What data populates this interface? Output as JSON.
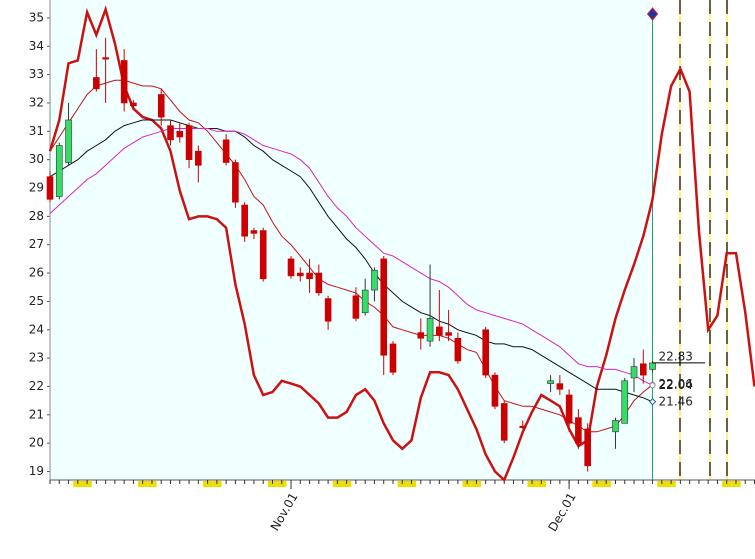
{
  "chart_data": {
    "type": "candlestick",
    "categories": [
      null,
      null,
      null,
      null,
      null,
      null,
      null,
      null,
      null,
      null,
      null,
      null,
      null,
      null,
      null,
      null,
      null,
      null,
      null,
      null,
      null,
      null,
      null,
      null,
      null,
      null,
      "Nov.01",
      null,
      null,
      null,
      null,
      null,
      null,
      null,
      null,
      null,
      null,
      null,
      null,
      null,
      null,
      null,
      null,
      null,
      null,
      null,
      null,
      null,
      null,
      null,
      null,
      null,
      null,
      null,
      null,
      null,
      "Dec.01",
      null,
      null,
      null,
      null,
      null,
      null,
      null,
      null,
      null,
      null,
      null,
      null,
      null,
      null,
      null,
      null,
      null,
      null,
      null,
      null
    ],
    "ohlc": {
      "up_color": "#33dd66",
      "down_color": "#cc0000",
      "open": [
        29.4,
        28.7,
        29.9,
        null,
        null,
        32.9,
        33.6,
        null,
        33.5,
        32.0,
        null,
        null,
        32.3,
        31.2,
        31.0,
        31.2,
        30.3,
        null,
        null,
        30.7,
        29.9,
        28.4,
        27.5,
        27.5,
        null,
        null,
        26.5,
        26.0,
        26.0,
        26.0,
        25.1,
        null,
        null,
        25.2,
        24.6,
        25.4,
        26.5,
        23.5,
        null,
        null,
        23.9,
        23.6,
        24.1,
        23.9,
        23.7,
        null,
        null,
        24.0,
        22.4,
        21.4,
        null,
        20.6,
        null,
        null,
        22.1,
        22.1,
        21.7,
        20.9,
        20.5,
        null,
        null,
        20.4,
        20.7,
        22.3,
        22.8,
        22.6,
        null,
        null,
        null,
        null,
        null,
        null,
        null,
        null,
        null,
        null,
        null
      ],
      "high": [
        29.6,
        30.6,
        32.0,
        null,
        null,
        33.9,
        34.3,
        null,
        33.9,
        32.1,
        null,
        null,
        32.5,
        31.4,
        31.3,
        31.3,
        30.5,
        null,
        null,
        30.9,
        30.0,
        28.5,
        27.6,
        27.6,
        null,
        null,
        26.6,
        26.2,
        26.5,
        26.3,
        25.2,
        null,
        null,
        25.5,
        25.8,
        26.2,
        26.6,
        23.6,
        null,
        null,
        24.4,
        26.3,
        25.4,
        24.7,
        23.9,
        null,
        null,
        24.1,
        22.5,
        21.5,
        null,
        20.8,
        null,
        null,
        22.4,
        22.4,
        21.9,
        21.2,
        20.7,
        null,
        null,
        20.9,
        22.3,
        23.0,
        23.3,
        22.9,
        null,
        null,
        null,
        null,
        null,
        null,
        null,
        null,
        null,
        null,
        null
      ],
      "low": [
        28.5,
        28.6,
        29.8,
        null,
        null,
        32.4,
        32.0,
        null,
        31.7,
        31.8,
        null,
        null,
        31.2,
        30.5,
        30.6,
        29.7,
        29.2,
        null,
        null,
        29.8,
        28.3,
        27.1,
        27.2,
        25.7,
        null,
        null,
        25.8,
        25.7,
        25.3,
        25.2,
        24.0,
        null,
        null,
        24.3,
        24.5,
        25.0,
        22.4,
        22.4,
        null,
        null,
        23.3,
        23.4,
        23.6,
        23.6,
        22.8,
        null,
        null,
        22.3,
        21.2,
        20.0,
        null,
        20.5,
        null,
        null,
        21.8,
        21.7,
        20.4,
        19.8,
        19.0,
        null,
        null,
        19.8,
        20.7,
        21.8,
        22.1,
        22.5,
        null,
        null,
        null,
        null,
        null,
        null,
        null,
        null,
        null,
        null,
        null
      ],
      "close": [
        28.6,
        30.5,
        31.4,
        null,
        null,
        32.5,
        33.6,
        null,
        32.0,
        31.9,
        null,
        null,
        31.5,
        30.7,
        30.8,
        30.0,
        29.8,
        null,
        null,
        29.9,
        28.5,
        27.3,
        27.4,
        25.8,
        null,
        null,
        25.9,
        25.9,
        25.8,
        25.3,
        24.3,
        null,
        null,
        24.4,
        25.4,
        26.1,
        23.1,
        22.5,
        null,
        null,
        23.7,
        24.4,
        23.8,
        23.8,
        22.9,
        null,
        null,
        22.4,
        21.3,
        20.1,
        null,
        20.6,
        null,
        null,
        22.2,
        21.9,
        20.7,
        20.0,
        19.2,
        null,
        null,
        20.8,
        22.2,
        22.7,
        22.4,
        22.83,
        null,
        null,
        null,
        null,
        null,
        null,
        null,
        null,
        null,
        null,
        null
      ]
    },
    "series": [
      {
        "color": "#cc1111",
        "width": 2.5,
        "values": [
          30.3,
          31.4,
          33.4,
          33.5,
          35.2,
          34.4,
          35.3,
          34.1,
          32.6,
          31.8,
          31.5,
          31.4,
          31.1,
          30.3,
          28.9,
          27.9,
          28.0,
          28.0,
          27.9,
          27.6,
          25.6,
          24.2,
          22.4,
          21.7,
          21.8,
          22.2,
          22.1,
          22.0,
          21.7,
          21.4,
          20.9,
          20.9,
          21.1,
          21.7,
          21.9,
          21.5,
          20.7,
          20.1,
          19.8,
          20.1,
          21.6,
          22.5,
          22.5,
          22.4,
          21.9,
          21.2,
          20.5,
          19.6,
          19.0,
          18.7,
          19.5,
          20.4,
          21.1,
          21.7,
          21.5,
          21.3,
          20.5,
          19.9,
          20.1,
          22.0,
          23.1,
          24.4,
          25.4,
          26.3,
          27.3,
          28.6,
          30.9,
          32.6,
          33.2,
          32.4,
          27.5,
          24.0,
          24.5,
          26.7,
          26.7,
          24.6,
          22.0
        ]
      },
      {
        "color": "#cc1111",
        "width": 1,
        "values": [
          30.3,
          30.8,
          31.3,
          31.8,
          32.3,
          32.6,
          32.7,
          32.8,
          32.8,
          32.7,
          32.6,
          32.6,
          32.5,
          32.1,
          31.7,
          31.4,
          31.3,
          31.0,
          30.6,
          30.2,
          29.8,
          29.3,
          28.7,
          28.4,
          27.8,
          27.3,
          27.0,
          26.6,
          26.2,
          25.8,
          25.6,
          25.5,
          25.4,
          25.3,
          25.0,
          24.8,
          24.5,
          24.1,
          24.0,
          23.9,
          23.8,
          23.8,
          23.8,
          23.7,
          23.5,
          23.3,
          23.2,
          22.6,
          22.0,
          21.5,
          21.4,
          21.3,
          21.3,
          21.2,
          21.1,
          21.0,
          20.8,
          20.6,
          20.4,
          20.4,
          20.5,
          20.6,
          21.0,
          21.5,
          21.8,
          22.06,
          null,
          null,
          null,
          null,
          null,
          null,
          null,
          null,
          null,
          null,
          null
        ]
      },
      {
        "color": "#111111",
        "width": 1,
        "values": [
          29.4,
          29.6,
          29.8,
          30.0,
          30.3,
          30.5,
          30.7,
          31.0,
          31.2,
          31.3,
          31.4,
          31.4,
          31.4,
          31.4,
          31.3,
          31.2,
          31.1,
          31.1,
          31.1,
          31.0,
          31.0,
          30.8,
          30.5,
          30.3,
          30.0,
          29.8,
          29.6,
          29.4,
          29.0,
          28.5,
          28.0,
          27.6,
          27.2,
          26.9,
          26.5,
          26.0,
          25.6,
          25.3,
          25.0,
          24.8,
          24.6,
          24.5,
          24.3,
          24.2,
          24.0,
          23.9,
          23.8,
          23.6,
          23.5,
          23.5,
          23.4,
          23.4,
          23.3,
          23.1,
          22.9,
          22.7,
          22.5,
          22.3,
          22.1,
          21.9,
          21.9,
          21.9,
          21.8,
          21.7,
          21.6,
          21.46,
          null,
          null,
          null,
          null,
          null,
          null,
          null,
          null,
          null,
          null,
          null
        ]
      },
      {
        "color": "#dd22cc",
        "width": 1,
        "values": [
          28.1,
          28.4,
          28.7,
          29.0,
          29.3,
          29.5,
          29.8,
          30.1,
          30.4,
          30.6,
          30.8,
          30.9,
          31.0,
          31.1,
          31.1,
          31.1,
          31.1,
          31.1,
          31.0,
          31.0,
          31.0,
          30.9,
          30.7,
          30.5,
          30.4,
          30.3,
          30.2,
          30.0,
          29.7,
          29.2,
          28.7,
          28.3,
          28.0,
          27.6,
          27.3,
          27.0,
          26.7,
          26.6,
          26.4,
          26.2,
          26.0,
          25.8,
          25.7,
          25.5,
          25.2,
          24.9,
          24.7,
          24.6,
          24.5,
          24.4,
          24.3,
          24.2,
          24.0,
          23.8,
          23.6,
          23.4,
          23.1,
          22.8,
          22.7,
          22.7,
          22.6,
          22.6,
          22.5,
          22.4,
          22.2,
          22.04,
          null,
          null,
          null,
          null,
          null,
          null,
          null,
          null,
          null,
          null,
          null
        ]
      }
    ],
    "end_labels": [
      22.83,
      22.06,
      22.04,
      21.46
    ],
    "ylim": [
      18.7,
      35.35
    ],
    "yticks": [
      19,
      20,
      21,
      22,
      23,
      24,
      25,
      26,
      27,
      28,
      29,
      30,
      31,
      32,
      33,
      34,
      35
    ]
  }
}
